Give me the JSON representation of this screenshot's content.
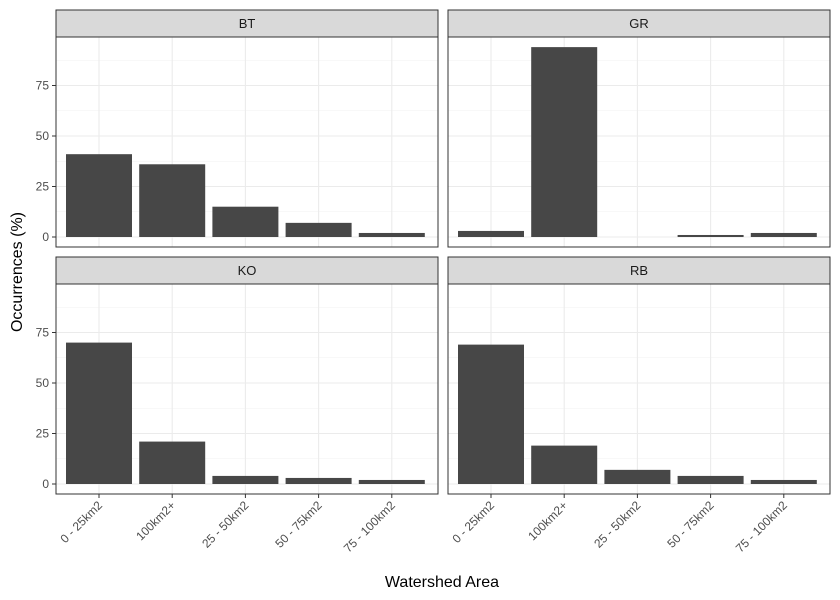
{
  "chart_data": {
    "type": "bar",
    "layout": "facet-grid 2x2",
    "xlabel": "Watershed Area",
    "ylabel": "Occurrences (%)",
    "ylim": [
      0,
      100
    ],
    "yticks": [
      0,
      25,
      50,
      75
    ],
    "categories": [
      "0 - 25km2",
      "100km2+",
      "25 - 50km2",
      "50 - 75km2",
      "75 - 100km2"
    ],
    "grid": true,
    "bar_color": "#474747",
    "strip_color": "#d9d9d9",
    "panels": [
      {
        "name": "BT",
        "values": [
          41,
          36,
          15,
          7,
          2
        ]
      },
      {
        "name": "GR",
        "values": [
          3,
          94,
          0,
          1,
          2
        ]
      },
      {
        "name": "KO",
        "values": [
          70,
          21,
          4,
          3,
          2
        ]
      },
      {
        "name": "RB",
        "values": [
          69,
          19,
          7,
          4,
          2
        ]
      }
    ]
  }
}
